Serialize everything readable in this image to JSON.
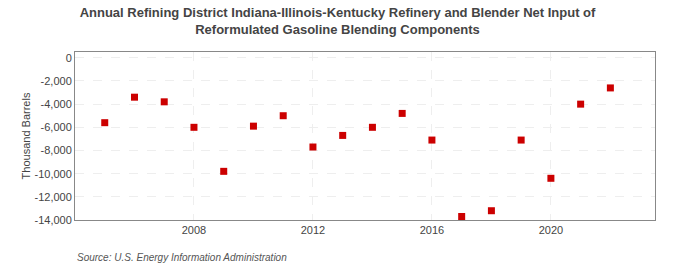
{
  "chart_data": {
    "type": "scatter",
    "title": "Annual Refining District Indiana-Illinois-Kentucky Refinery and Blender Net Input of\nReformulated Gasoline Blending Components",
    "ylabel": "Thousand Barrels",
    "annotations": [
      "Source: U.S. Energy Information Administration"
    ],
    "x": [
      2005,
      2006,
      2007,
      2008,
      2009,
      2010,
      2011,
      2012,
      2013,
      2014,
      2015,
      2016,
      2017,
      2018,
      2019,
      2020,
      2021,
      2022
    ],
    "values": [
      -5600,
      -3400,
      -3800,
      -6000,
      -9800,
      -5900,
      -5000,
      -7700,
      -6700,
      -6000,
      -4800,
      -7100,
      -13700,
      -13200,
      -7100,
      -10400,
      -4000,
      -2600
    ],
    "color": "#cc0000",
    "marker": "square",
    "xlim": [
      2004,
      2023.5
    ],
    "ylim": [
      -14000,
      500
    ],
    "xticks": [
      2008,
      2012,
      2016,
      2020
    ],
    "yticks": [
      0,
      {
        "value": -2000,
        "label": "-2,000"
      },
      {
        "value": -4000,
        "label": "-4,000"
      },
      {
        "value": -6000,
        "label": "-6,000"
      },
      {
        "value": -8000,
        "label": "-8,000"
      },
      {
        "value": -10000,
        "label": "-10,000"
      },
      {
        "value": -12000,
        "label": "-12,000"
      },
      {
        "value": -14000,
        "label": "-14,000"
      }
    ],
    "grid": true
  }
}
